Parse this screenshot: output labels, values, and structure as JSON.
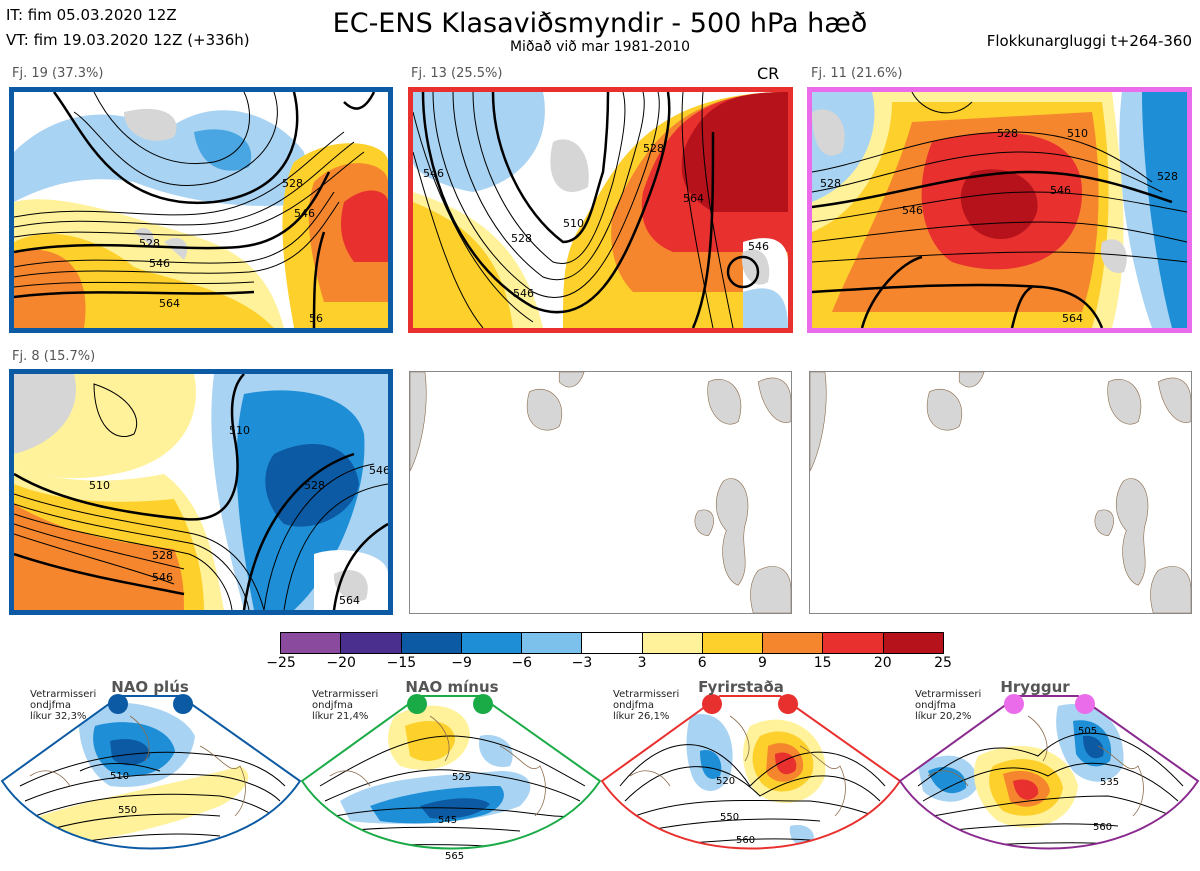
{
  "header": {
    "it_line": "IT: fim 05.03.2020 12Z",
    "vt_line": "VT: fim 19.03.2020 12Z  (+336h)",
    "title": "EC-ENS Klasaviðsmyndir - 500 hPa hæð",
    "subtitle": "Miðað við mar 1981-2010",
    "window": "Flokkunargluggi t+264-360"
  },
  "clusters": [
    {
      "label": "Fj. 19 (37.3%)",
      "border_color": "#0b5aa3",
      "contours": [
        "528",
        "546",
        "564",
        "528",
        "546",
        "56"
      ]
    },
    {
      "label": "Fj. 13 (25.5%)",
      "border_color": "#e8302e",
      "marker": "CR",
      "contours": [
        "510",
        "528",
        "546",
        "564",
        "546",
        "528",
        "546"
      ]
    },
    {
      "label": "Fj. 11 (21.6%)",
      "border_color": "#ea6cea",
      "contours": [
        "510",
        "528",
        "528",
        "546",
        "528",
        "546",
        "564"
      ]
    },
    {
      "label": "Fj. 8 (15.7%)",
      "border_color": "#0b5aa3",
      "contours": [
        "510",
        "510",
        "528",
        "546",
        "528",
        "546",
        "564"
      ]
    },
    {
      "label": ""
    },
    {
      "label": ""
    }
  ],
  "colorbar": {
    "ticks": [
      "−25",
      "−20",
      "−15",
      "−9",
      "−6",
      "−3",
      "3",
      "6",
      "9",
      "15",
      "20",
      "25"
    ],
    "colors": [
      "#8a4b9f",
      "#4a2f8f",
      "#0b5aa3",
      "#1e8fd6",
      "#7cc0ec",
      "#ffffff",
      "#fff29a",
      "#fdd02c",
      "#f5862e",
      "#e8302e",
      "#b5121b"
    ]
  },
  "regimes": [
    {
      "name": "NAO plús",
      "stat_line1": "Vetrarmisseri",
      "stat_line2": "ondjfma",
      "stat_line3": "líkur 32,3%",
      "dot_color": "#0b5aa3",
      "border_color": "#0b5aa3",
      "contours": [
        "510",
        "550"
      ]
    },
    {
      "name": "NAO mínus",
      "stat_line1": "Vetrarmisseri",
      "stat_line2": "ondjfma",
      "stat_line3": "líkur 21,4%",
      "dot_color": "#1aab47",
      "border_color": "#1aab47",
      "contours": [
        "525",
        "545",
        "565"
      ]
    },
    {
      "name": "Fyrirstaða",
      "stat_line1": "Vetrarmisseri",
      "stat_line2": "ondjfma",
      "stat_line3": "líkur 26,1%",
      "dot_color": "#e8302e",
      "border_color": "#e8302e",
      "contours": [
        "520",
        "550",
        "560"
      ]
    },
    {
      "name": "Hryggur",
      "stat_line1": "Vetrarmisseri",
      "stat_line2": "ondjfma",
      "stat_line3": "líkur 20,2%",
      "dot_color": "#ea6cea",
      "border_color": "#8a2a8f",
      "contours": [
        "505",
        "535",
        "560"
      ]
    }
  ]
}
